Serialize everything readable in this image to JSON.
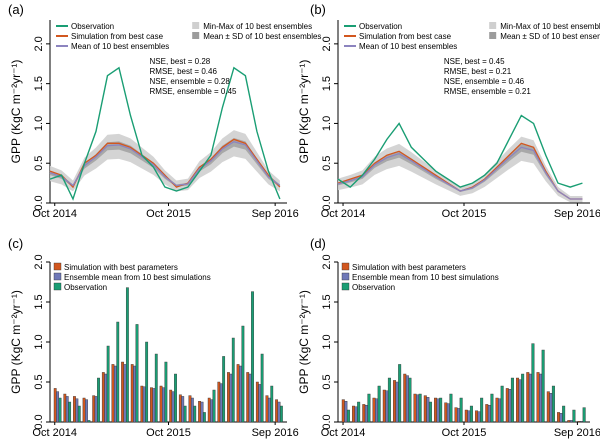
{
  "colors": {
    "observation": "#1a9e74",
    "best": "#d2571f",
    "mean": "#8c84bf",
    "minmax": "#cfcfcf",
    "sd": "#9c9c9c",
    "bar_best": "#d2571f",
    "bar_mean": "#6e78b8",
    "bar_obs": "#1a9e74"
  },
  "chart_data": [
    {
      "panel": "(a)",
      "type": "line",
      "ylabel": "GPP (KgC m⁻²yr⁻¹)",
      "ylim": [
        0,
        2.3
      ],
      "yticks": [
        "0.0",
        "0.5",
        "1.0",
        "1.5",
        "2.0"
      ],
      "xticks": [
        "Oct 2014",
        "Oct 2015",
        "Sep 2016"
      ],
      "legend_left": [
        "Observation",
        "Simulation from best case",
        "Mean of 10 best ensembles"
      ],
      "legend_right": [
        "Min-Max of 10 best ensembles",
        "Mean ± SD of 10 best ensembles"
      ],
      "stats": [
        "NSE, best = 0.28",
        "RMSE, best = 0.46",
        "NSE, ensemble = 0.28",
        "RMSE, ensemble = 0.45"
      ],
      "series": [
        {
          "name": "Observation",
          "x": [
            0,
            0.05,
            0.1,
            0.15,
            0.2,
            0.25,
            0.3,
            0.35,
            0.4,
            0.45,
            0.5,
            0.55,
            0.6,
            0.65,
            0.7,
            0.75,
            0.8,
            0.85,
            0.9,
            0.95,
            1.0
          ],
          "values": [
            0.3,
            0.35,
            0.05,
            0.5,
            0.9,
            1.6,
            1.7,
            1.1,
            0.6,
            0.45,
            0.2,
            0.15,
            0.2,
            0.4,
            0.6,
            1.2,
            1.7,
            1.6,
            0.9,
            0.4,
            0.05
          ]
        },
        {
          "name": "Simulation from best case",
          "x": [
            0,
            0.05,
            0.1,
            0.15,
            0.2,
            0.25,
            0.3,
            0.35,
            0.4,
            0.45,
            0.5,
            0.55,
            0.6,
            0.65,
            0.7,
            0.75,
            0.8,
            0.85,
            0.9,
            0.95,
            1.0
          ],
          "values": [
            0.4,
            0.35,
            0.2,
            0.5,
            0.6,
            0.75,
            0.75,
            0.7,
            0.6,
            0.5,
            0.35,
            0.2,
            0.25,
            0.45,
            0.55,
            0.7,
            0.8,
            0.75,
            0.55,
            0.35,
            0.2
          ]
        },
        {
          "name": "Mean of 10 best ensembles",
          "x": [
            0,
            0.05,
            0.1,
            0.15,
            0.2,
            0.25,
            0.3,
            0.35,
            0.4,
            0.45,
            0.5,
            0.55,
            0.6,
            0.65,
            0.7,
            0.75,
            0.8,
            0.85,
            0.9,
            0.95,
            1.0
          ],
          "values": [
            0.38,
            0.33,
            0.22,
            0.47,
            0.58,
            0.72,
            0.73,
            0.68,
            0.58,
            0.48,
            0.33,
            0.22,
            0.24,
            0.43,
            0.53,
            0.68,
            0.77,
            0.73,
            0.53,
            0.33,
            0.22
          ]
        }
      ]
    },
    {
      "panel": "(b)",
      "type": "line",
      "ylabel": "GPP (KgC m⁻²yr⁻¹)",
      "ylim": [
        0,
        2.3
      ],
      "yticks": [
        "0.0",
        "0.5",
        "1.0",
        "1.5",
        "2.0"
      ],
      "xticks": [
        "Oct 2014",
        "Oct 2015",
        "Sep 2016"
      ],
      "legend_left": [
        "Observation",
        "Simulation from best case",
        "Mean of 10 best ensembles"
      ],
      "legend_right": [
        "Min-Max of 10 best ensembles",
        "Mean ± SD of 10 best ensembles"
      ],
      "stats": [
        "NSE, best = 0.45",
        "RMSE, best = 0.21",
        "NSE, ensemble = 0.46",
        "RMSE, ensemble = 0.21"
      ],
      "series": [
        {
          "name": "Observation",
          "x": [
            0,
            0.05,
            0.1,
            0.15,
            0.2,
            0.25,
            0.3,
            0.35,
            0.4,
            0.45,
            0.5,
            0.55,
            0.6,
            0.65,
            0.7,
            0.75,
            0.8,
            0.85,
            0.9,
            0.95,
            1.0
          ],
          "values": [
            0.3,
            0.2,
            0.35,
            0.55,
            0.8,
            1.0,
            0.7,
            0.55,
            0.4,
            0.3,
            0.2,
            0.25,
            0.35,
            0.5,
            0.8,
            1.1,
            1.0,
            0.6,
            0.25,
            0.2,
            0.25
          ]
        },
        {
          "name": "Simulation from best case",
          "x": [
            0,
            0.05,
            0.1,
            0.15,
            0.2,
            0.25,
            0.3,
            0.35,
            0.4,
            0.45,
            0.5,
            0.55,
            0.6,
            0.65,
            0.7,
            0.75,
            0.8,
            0.85,
            0.9,
            0.95,
            1.0
          ],
          "values": [
            0.25,
            0.3,
            0.35,
            0.5,
            0.6,
            0.65,
            0.55,
            0.45,
            0.35,
            0.25,
            0.15,
            0.2,
            0.3,
            0.45,
            0.6,
            0.75,
            0.7,
            0.4,
            0.15,
            0.05,
            0.05
          ]
        },
        {
          "name": "Mean of 10 best ensembles",
          "x": [
            0,
            0.05,
            0.1,
            0.15,
            0.2,
            0.25,
            0.3,
            0.35,
            0.4,
            0.45,
            0.5,
            0.55,
            0.6,
            0.65,
            0.7,
            0.75,
            0.8,
            0.85,
            0.9,
            0.95,
            1.0
          ],
          "values": [
            0.24,
            0.28,
            0.33,
            0.48,
            0.57,
            0.62,
            0.53,
            0.43,
            0.33,
            0.24,
            0.15,
            0.19,
            0.29,
            0.43,
            0.57,
            0.7,
            0.66,
            0.38,
            0.15,
            0.05,
            0.05
          ]
        }
      ]
    },
    {
      "panel": "(c)",
      "type": "bar",
      "ylabel": "GPP (KgC m⁻²yr⁻¹)",
      "ylim": [
        0,
        2.0
      ],
      "yticks": [
        "0.0",
        "0.5",
        "1.0",
        "1.5",
        "2.0"
      ],
      "xticks": [
        "Oct 2014",
        "Oct 2015",
        "Sep 2016"
      ],
      "legend": [
        "Simulation with best parameters",
        "Ensemble mean from 10 best simulations",
        "Observation"
      ],
      "groups": 24,
      "series": [
        {
          "name": "Simulation with best parameters",
          "values": [
            0.42,
            0.35,
            0.32,
            0.3,
            0.33,
            0.62,
            0.72,
            0.75,
            0.72,
            0.45,
            0.43,
            0.45,
            0.4,
            0.34,
            0.33,
            0.26,
            0.3,
            0.5,
            0.62,
            0.72,
            0.62,
            0.5,
            0.33,
            0.28
          ]
        },
        {
          "name": "Ensemble mean from 10 best simulations",
          "values": [
            0.38,
            0.32,
            0.29,
            0.28,
            0.32,
            0.6,
            0.7,
            0.72,
            0.7,
            0.44,
            0.42,
            0.43,
            0.38,
            0.32,
            0.3,
            0.25,
            0.28,
            0.48,
            0.6,
            0.7,
            0.6,
            0.47,
            0.3,
            0.25
          ]
        },
        {
          "name": "Observation",
          "values": [
            0.3,
            0.25,
            0.2,
            0.02,
            0.55,
            0.95,
            1.25,
            1.68,
            1.22,
            1.0,
            0.85,
            0.75,
            0.6,
            0.2,
            0.2,
            0.12,
            0.4,
            0.82,
            1.05,
            1.2,
            1.63,
            0.85,
            0.45,
            0.2
          ]
        }
      ]
    },
    {
      "panel": "(d)",
      "type": "bar",
      "ylabel": "GPP (KgC m⁻²yr⁻¹)",
      "ylim": [
        0,
        2.0
      ],
      "yticks": [
        "0.0",
        "0.5",
        "1.0",
        "1.5",
        "2.0"
      ],
      "xticks": [
        "Oct 2014",
        "Oct 2015",
        "Sep 2016"
      ],
      "legend": [
        "Simulation with best parameters",
        "Ensemble mean from 10 best simulations",
        "Observation"
      ],
      "groups": 24,
      "series": [
        {
          "name": "Simulation with best parameters",
          "values": [
            0.28,
            0.2,
            0.22,
            0.3,
            0.4,
            0.52,
            0.6,
            0.35,
            0.33,
            0.3,
            0.24,
            0.18,
            0.15,
            0.14,
            0.22,
            0.3,
            0.42,
            0.55,
            0.62,
            0.62,
            0.38,
            0.12,
            0.02,
            0.01
          ]
        },
        {
          "name": "Ensemble mean from 10 best simulations",
          "values": [
            0.26,
            0.19,
            0.21,
            0.29,
            0.39,
            0.5,
            0.58,
            0.34,
            0.31,
            0.29,
            0.23,
            0.17,
            0.14,
            0.13,
            0.21,
            0.29,
            0.41,
            0.53,
            0.6,
            0.6,
            0.36,
            0.11,
            0.02,
            0.01
          ]
        },
        {
          "name": "Observation",
          "values": [
            0.15,
            0.25,
            0.35,
            0.45,
            0.55,
            0.72,
            0.55,
            0.35,
            0.25,
            0.3,
            0.35,
            0.3,
            0.2,
            0.3,
            0.35,
            0.45,
            0.55,
            0.6,
            0.98,
            0.9,
            0.45,
            0.2,
            0.15,
            0.18
          ]
        }
      ]
    }
  ]
}
